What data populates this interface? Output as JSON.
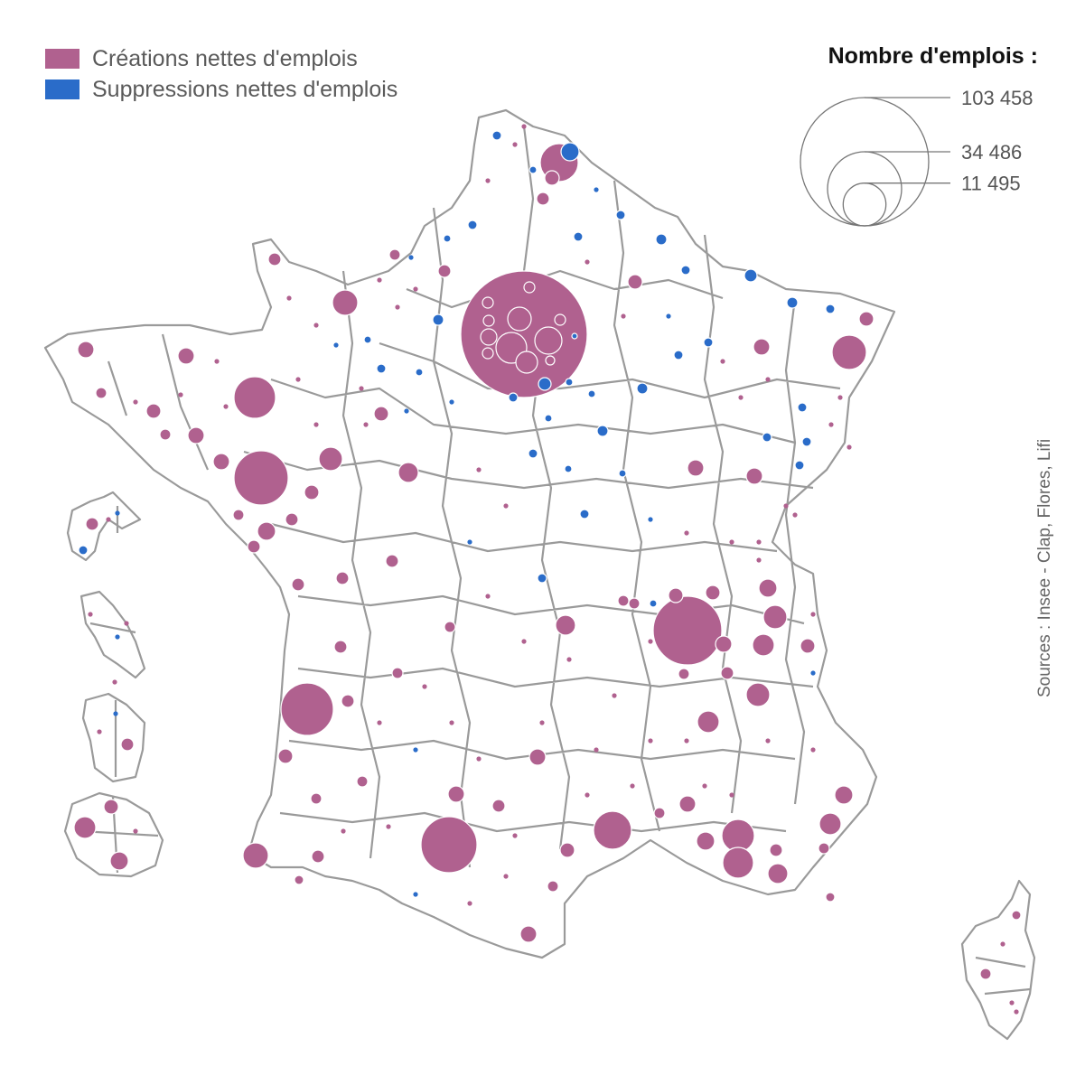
{
  "colors": {
    "creation": "#b0618f",
    "suppression": "#2a6cc9",
    "border": "#9a9a9a"
  },
  "legend": {
    "items": [
      {
        "key": "creation",
        "label": "Créations nettes d'emplois"
      },
      {
        "key": "suppression",
        "label": "Suppressions nettes d'emplois"
      }
    ]
  },
  "size_legend": {
    "title": "Nombre d'emplois :",
    "values": [
      {
        "value": 103458,
        "label": "103 458"
      },
      {
        "value": 34486,
        "label": "34 486"
      },
      {
        "value": 11495,
        "label": "11 495"
      }
    ]
  },
  "source": "Sources : Insee - Clap, Flores, Lifi"
}
